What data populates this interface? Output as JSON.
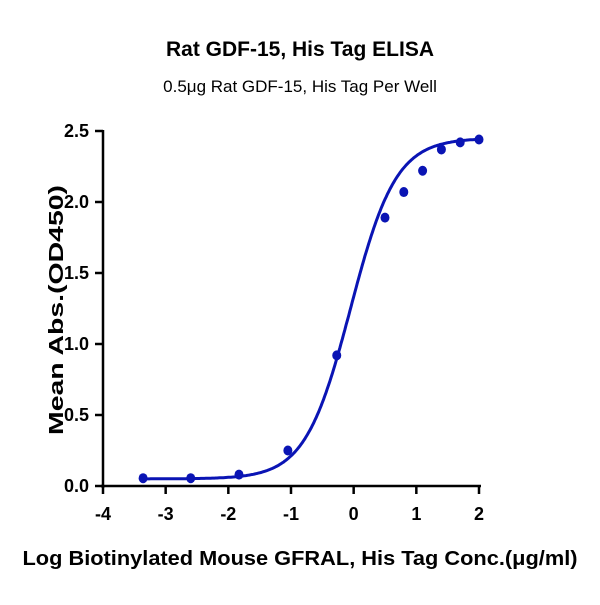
{
  "chart_data": {
    "type": "scatter",
    "title": "Rat GDF-15, His Tag ELISA",
    "subtitle": "0.5μg Rat GDF-15, His Tag Per Well",
    "xlabel": "Log Biotinylated Mouse GFRAL, His Tag Conc.(μg/ml)",
    "ylabel": "Mean Abs.(OD450)",
    "xlim": [
      -4,
      2
    ],
    "ylim": [
      0,
      2.5
    ],
    "xticks": [
      "-4",
      "-3",
      "-2",
      "-1",
      "0",
      "1",
      "2"
    ],
    "yticks": [
      "0.0",
      "0.5",
      "1.0",
      "1.5",
      "2.0",
      "2.5"
    ],
    "grid": false,
    "fit_curve": "sigmoidal",
    "color": "#0a14b4",
    "series": [
      {
        "x": [
          -3.36,
          -2.6,
          -1.83,
          -1.05,
          -0.27,
          0.5,
          0.8,
          1.1,
          1.4,
          1.7,
          2.0
        ],
        "y": [
          0.055,
          0.055,
          0.08,
          0.25,
          0.92,
          1.89,
          2.07,
          2.22,
          2.37,
          2.42,
          2.44
        ]
      }
    ]
  }
}
